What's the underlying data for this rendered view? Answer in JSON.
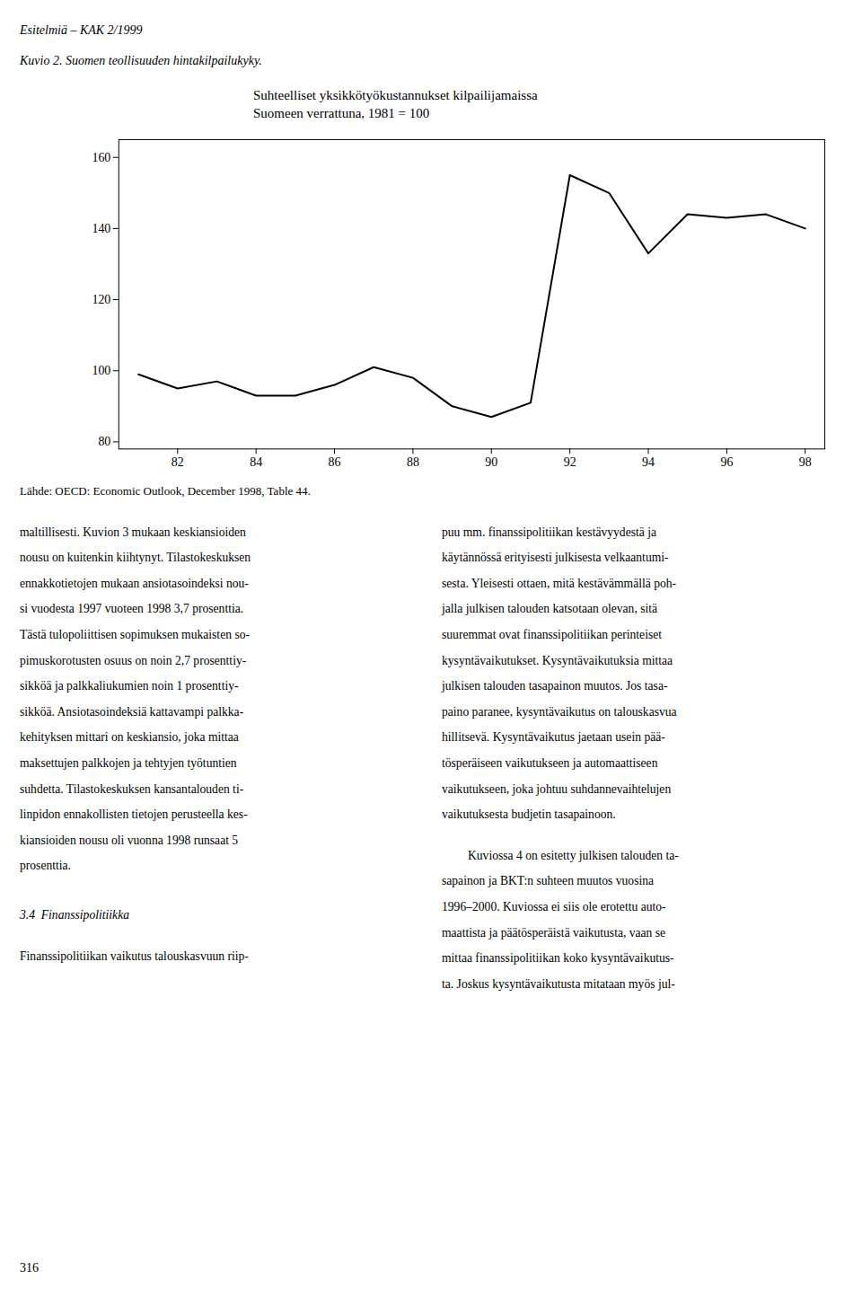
{
  "page_title": "Esitelmiä – KAK 2/1999",
  "figure_caption": "Kuvio 2. Suomen teollisuuden hintakilpailukyky.",
  "chart_data": {
    "type": "line",
    "title": "Suhteelliset yksikkötyökustannukset kilpailijamaissa",
    "subtitle": "Suomeen verrattuna, 1981 = 100",
    "x": [
      81,
      82,
      83,
      84,
      85,
      86,
      87,
      88,
      89,
      90,
      91,
      92,
      93,
      94,
      95,
      96,
      97,
      98
    ],
    "values": [
      99,
      95,
      97,
      93,
      93,
      96,
      101,
      98,
      90,
      87,
      91,
      155,
      150,
      133,
      144,
      143,
      144,
      140
    ],
    "color": "#000000",
    "xlim": [
      80.5,
      98.5
    ],
    "xticks": [
      82,
      84,
      86,
      88,
      90,
      92,
      94,
      96,
      98
    ],
    "ylim": [
      78,
      165
    ],
    "yticks": [
      80,
      100,
      120,
      140,
      160
    ],
    "grid": false,
    "source": "Lähde: OECD: Economic Outlook, December 1998, Table 44."
  },
  "body": {
    "left": [
      "maltillisesti. Kuvion 3 mukaan keskiansioiden",
      "nousu on kuitenkin kiihtynyt. Tilastokeskuksen",
      "ennakkotietojen mukaan ansiotasoindeksi nou-",
      "si vuodesta 1997 vuoteen 1998 3,7 prosenttia.",
      "Tästä tulopoliittisen sopimuksen mukaisten so-",
      "pimuskorotusten osuus on noin 2,7 prosenttiy-",
      "sikköä ja palkkaliukumien noin 1 prosenttiy-",
      "sikköä. Ansiotasoindeksiä kattavampi palkka-",
      "kehityksen mittari on keskiansio, joka mittaa",
      "maksettujen palkkojen ja tehtyjen työtuntien",
      "suhdetta. Tilastokeskuksen kansantalouden ti-",
      "linpidon ennakollisten tietojen perusteella kes-",
      "kiansioiden nousu oli vuonna 1998 runsaat 5",
      "prosenttia."
    ],
    "section_heading": "3.4  Finanssipolitiikka",
    "section_text": "Finanssipolitiikan vaikutus talouskasvuun riip-",
    "right": [
      "puu mm. finanssipolitiikan kestävyydestä ja",
      "käytännössä erityisesti julkisesta velkaantumi-",
      "sesta. Yleisesti ottaen, mitä kestävämmällä poh-",
      "jalla julkisen talouden katsotaan olevan, sitä",
      "suuremmat ovat finanssipolitiikan perinteiset",
      "kysyntävaikutukset. Kysyntävaikutuksia mittaa",
      "julkisen talouden tasapainon muutos. Jos tasa-",
      "paino paranee, kysyntävaikutus on talouskasvua",
      "hillitsevä. Kysyntävaikutus jaetaan usein pää-",
      "tösperäiseen vaikutukseen ja automaattiseen",
      "vaikutukseen, joka johtuu suhdannevaihtelujen",
      "vaikutuksesta budjetin tasapainoon."
    ],
    "right2": [
      "Kuviossa 4 on esitetty julkisen talouden ta-",
      "sapainon ja BKT:n suhteen muutos vuosina",
      "1996–2000. Kuviossa ei siis ole erotettu auto-",
      "maattista ja päätösperäistä vaikutusta, vaan se",
      "mittaa finanssipolitiikan koko kysyntävaikutus-",
      "ta. Joskus kysyntävaikutusta mitataan myös jul-"
    ]
  },
  "page_number": "316"
}
